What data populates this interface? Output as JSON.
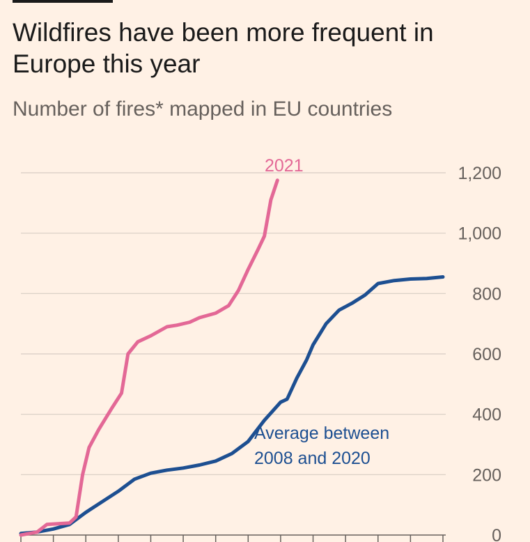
{
  "header": {
    "title": "Wildfires have been more frequent in Europe this year",
    "subtitle": "Number of fires* mapped in EU countries"
  },
  "chart_data": {
    "type": "line",
    "title": "Wildfires have been more frequent in Europe this year",
    "subtitle": "Number of fires* mapped in EU countries",
    "ylim": [
      0,
      1200
    ],
    "yticks": [
      "0",
      "200",
      "400",
      "600",
      "800",
      "1,000",
      "1,200"
    ],
    "ytick_values": [
      0,
      200,
      400,
      600,
      800,
      1000,
      1200
    ],
    "y_axis_position": "right",
    "grid": true,
    "xlim": [
      0,
      13
    ],
    "x_tick_count": 13,
    "series": [
      {
        "name": "2021",
        "color": "#e36896",
        "x": [
          0,
          0.5,
          0.8,
          1.5,
          1.7,
          1.9,
          2.1,
          2.4,
          2.8,
          3.1,
          3.3,
          3.6,
          4.0,
          4.5,
          4.8,
          5.2,
          5.5,
          6.0,
          6.4,
          6.7,
          7.0,
          7.3,
          7.5,
          7.7,
          7.9
        ],
        "values": [
          0,
          10,
          35,
          40,
          60,
          200,
          290,
          350,
          420,
          470,
          600,
          640,
          660,
          690,
          695,
          705,
          720,
          735,
          760,
          810,
          880,
          945,
          990,
          1110,
          1175
        ]
      },
      {
        "name": "Average between 2008 and 2020",
        "color": "#1d4f91",
        "x": [
          0,
          0.5,
          1.0,
          1.5,
          2.0,
          2.5,
          3.0,
          3.5,
          4.0,
          4.5,
          5.0,
          5.5,
          6.0,
          6.5,
          7.0,
          7.5,
          8.0,
          8.2,
          8.5,
          8.8,
          9.0,
          9.4,
          9.8,
          10.2,
          10.6,
          11.0,
          11.5,
          12.0,
          12.5,
          13.0
        ],
        "values": [
          5,
          10,
          20,
          35,
          75,
          110,
          145,
          185,
          205,
          215,
          222,
          232,
          245,
          270,
          310,
          380,
          440,
          450,
          520,
          580,
          630,
          700,
          745,
          768,
          795,
          833,
          843,
          848,
          850,
          855
        ]
      }
    ],
    "annotations": [
      {
        "series": "2021",
        "text": "2021"
      },
      {
        "series": "Average between 2008 and 2020",
        "lines": [
          "Average between",
          "2008 and 2020"
        ]
      }
    ]
  }
}
